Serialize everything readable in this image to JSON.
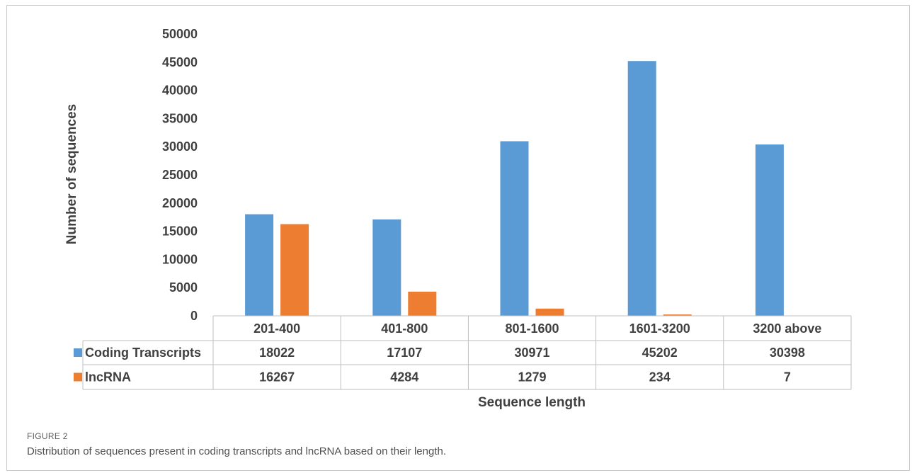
{
  "chart_data": {
    "type": "bar",
    "categories": [
      "201-400",
      "401-800",
      "801-1600",
      "1601-3200",
      "3200 above"
    ],
    "series": [
      {
        "name": "Coding Transcripts",
        "values": [
          18022,
          17107,
          30971,
          45202,
          30398
        ],
        "color": "#5B9BD5"
      },
      {
        "name": "lncRNA",
        "values": [
          16267,
          4284,
          1279,
          234,
          7
        ],
        "color": "#ED7D31"
      }
    ],
    "yticks": [
      0,
      5000,
      10000,
      15000,
      20000,
      25000,
      30000,
      35000,
      40000,
      45000,
      50000
    ],
    "ylim": [
      0,
      50000
    ],
    "ylabel": "Number of sequences",
    "xlabel": "Sequence length",
    "legend": "data table below chart"
  },
  "caption": {
    "label": "FIGURE 2",
    "text": "Distribution of sequences present in coding transcripts and lncRNA based on their length."
  }
}
